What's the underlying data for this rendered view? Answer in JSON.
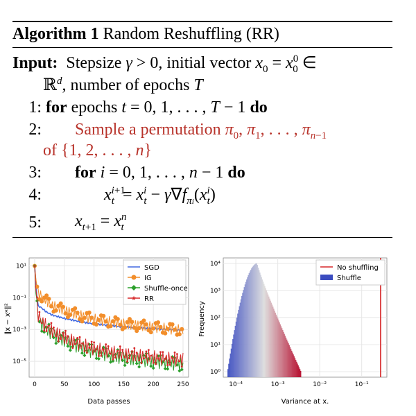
{
  "algorithm": {
    "label": "Algorithm 1",
    "title": "Random Reshuffling (RR)",
    "input_kw": "Input:",
    "input_text": "Stepsize",
    "gamma_cond": "γ > 0, initial vector",
    "x0": "x",
    "x0_sub": "0",
    "eq": " = x",
    "x00_sup": "0",
    "x00_sub": "0",
    "elem": "∈",
    "input_line2_pre": "ℝ",
    "input_line2_sup": "d",
    "input_line2_rest": ", number of epochs",
    "T": "T",
    "lines": [
      {
        "num": "1:",
        "kw": "for",
        "text": "epochs",
        "math": "t = 0, 1, . . . , T − 1",
        "kw2": "do"
      },
      {
        "num": "2:",
        "text": "Sample a permutation",
        "math": "π",
        "cont": "of {1, 2, . . . , n}"
      },
      {
        "num": "3:",
        "kw": "for",
        "math": "i = 0, 1, . . . , n − 1",
        "kw2": "do"
      },
      {
        "num": "4:"
      },
      {
        "num": "5:"
      }
    ]
  },
  "charts": [
    {
      "type": "line",
      "ylabel": "‖x − x*‖²",
      "xlabel": "Data passes",
      "xticks": [
        "0",
        "50",
        "100",
        "150",
        "200",
        "250"
      ],
      "yticks": [
        "10¹",
        "10⁻¹",
        "10⁻³",
        "10⁻⁵"
      ],
      "legend": [
        "SGD",
        "IG",
        "Shuffle-once",
        "RR"
      ],
      "colors": [
        "#4169e1",
        "#f28e2b",
        "#2ca02c",
        "#d62728"
      ]
    },
    {
      "type": "histogram",
      "ylabel": "Frequency",
      "xlabel": "Variance at x.",
      "xticks": [
        "10⁻⁴",
        "10⁻³",
        "10⁻²",
        "10⁻¹"
      ],
      "yticks": [
        "10⁴",
        "10³",
        "10²",
        "10¹",
        "10⁰"
      ],
      "legend": [
        "No shuffling",
        "Shuffle"
      ],
      "colors": [
        "#d62728",
        "#3b4cc0"
      ]
    }
  ],
  "chart_data": [
    {
      "type": "line",
      "xlabel": "Data passes",
      "ylabel": "‖x − x*‖²",
      "xlim": [
        0,
        250
      ],
      "ylim_log10": [
        -6,
        1.5
      ],
      "legend_loc": "top-right",
      "series": [
        {
          "name": "SGD",
          "x": [
            0,
            5,
            10,
            20,
            30,
            50,
            75,
            100,
            125,
            150,
            175,
            200,
            225,
            250
          ],
          "log10y": [
            1,
            -1.5,
            -1.6,
            -1.9,
            -2.1,
            -2.3,
            -2.5,
            -2.65,
            -2.75,
            -2.85,
            -2.9,
            -2.95,
            -3.0,
            -3.05
          ]
        },
        {
          "name": "IG",
          "x": [
            0,
            5,
            10,
            20,
            30,
            50,
            75,
            100,
            125,
            150,
            175,
            200,
            225,
            250
          ],
          "log10y": [
            1,
            -0.6,
            -0.9,
            -1.2,
            -1.5,
            -1.8,
            -2.1,
            -2.35,
            -2.5,
            -2.65,
            -2.75,
            -2.85,
            -2.95,
            -3.05
          ]
        },
        {
          "name": "Shuffle-once",
          "x": [
            0,
            5,
            10,
            20,
            30,
            50,
            75,
            100,
            125,
            150,
            175,
            200,
            225,
            250
          ],
          "log10y": [
            1,
            -2.2,
            -2.6,
            -3.0,
            -3.3,
            -3.7,
            -4.1,
            -4.4,
            -4.6,
            -4.8,
            -4.9,
            -5.0,
            -5.1,
            -5.2
          ]
        },
        {
          "name": "RR",
          "x": [
            0,
            5,
            10,
            20,
            30,
            50,
            75,
            100,
            125,
            150,
            175,
            200,
            225,
            250
          ],
          "log10y": [
            1,
            -2.0,
            -2.4,
            -2.8,
            -3.1,
            -3.5,
            -3.9,
            -4.2,
            -4.4,
            -4.55,
            -4.65,
            -4.75,
            -4.85,
            -4.9
          ]
        }
      ]
    },
    {
      "type": "histogram",
      "xlabel": "Variance at x.",
      "ylabel": "Frequency",
      "xscale": "log",
      "yscale": "log",
      "xlim_log10": [
        -4.3,
        -0.4
      ],
      "ylim_log10": [
        -0.2,
        4.2
      ],
      "legend_loc": "top-right",
      "shuffle_peak_log10x": -3.5,
      "shuffle_peak_log10count": 4.0,
      "shuffle_range_log10x": [
        -4.2,
        -2.45
      ],
      "no_shuffling_log10x": -0.55
    }
  ]
}
